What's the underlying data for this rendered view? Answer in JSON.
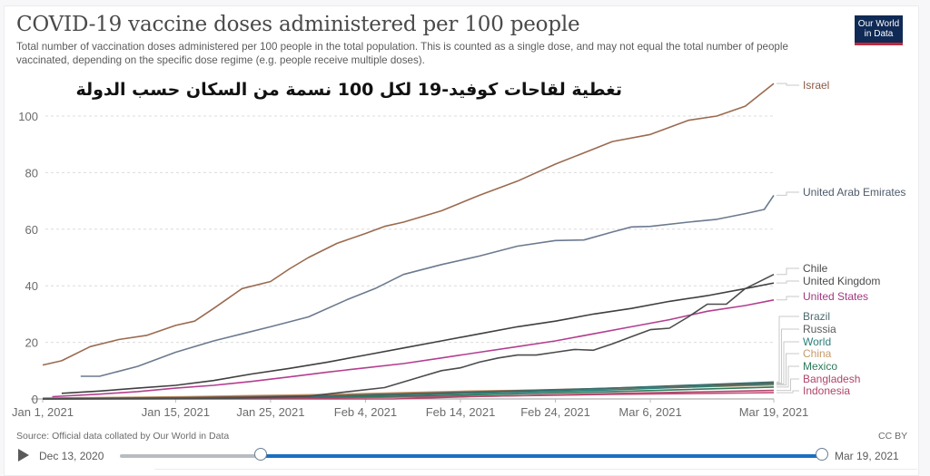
{
  "header": {
    "title": "COVID-19 vaccine doses administered per 100 people",
    "subtitle": "Total number of vaccination doses administered per 100 people in the total population. This is counted as a single dose, and may not equal the total number of people vaccinated, depending on the specific dose regime (e.g. people receive multiple doses).",
    "logo_line1": "Our World",
    "logo_line2": "in Data",
    "logo_colors": {
      "background": "#0f2a55",
      "accent": "#c0283b"
    },
    "overlay_arabic_caption": "تغطية لقاحات كوفيد-19 لكل 100 نسمة من السكان حسب الدولة"
  },
  "footer": {
    "source": "Source: Official data collated by Our World in Data",
    "license": "CC BY",
    "timeline": {
      "play_icon": "play-icon",
      "start_label": "Dec 13, 2020",
      "end_label": "Mar 19, 2021",
      "range_start_fraction": 0.2,
      "range_end_fraction": 1.0,
      "fill_color": "#1a6fc2",
      "track_color": "#b8bcc2"
    }
  },
  "chart_data": {
    "type": "line",
    "title": "COVID-19 vaccine doses administered per 100 people",
    "xlabel": "",
    "ylabel": "",
    "x_unit": "days since Jan 1, 2021",
    "x_range": [
      0,
      77
    ],
    "ylim": [
      0,
      100
    ],
    "yticks": [
      0,
      20,
      40,
      60,
      80,
      100
    ],
    "grid": "horizontal dashed",
    "xticks": [
      {
        "day": 0,
        "label": "Jan 1, 2021"
      },
      {
        "day": 14,
        "label": "Jan 15, 2021"
      },
      {
        "day": 24,
        "label": "Jan 25, 2021"
      },
      {
        "day": 34,
        "label": "Feb 4, 2021"
      },
      {
        "day": 44,
        "label": "Feb 14, 2021"
      },
      {
        "day": 54,
        "label": "Feb 24, 2021"
      },
      {
        "day": 64,
        "label": "Mar 6, 2021"
      },
      {
        "day": 77,
        "label": "Mar 19, 2021"
      }
    ],
    "legend_placement": "right (end-of-line labels)",
    "series": [
      {
        "name": "Israel",
        "color": "#9a6a4f",
        "label_color": "#8a5a44",
        "x": [
          0,
          2,
          5,
          8,
          11,
          14,
          16,
          18,
          21,
          24,
          26,
          28,
          31,
          34,
          36,
          38,
          42,
          46,
          50,
          54,
          57,
          60,
          64,
          68,
          71,
          74,
          77
        ],
        "y": [
          12,
          13.5,
          18.5,
          21,
          22.5,
          26,
          27.5,
          32,
          39,
          41.5,
          46,
          50,
          55,
          58.5,
          61,
          62.5,
          66.5,
          72,
          77,
          83,
          87,
          91,
          93.5,
          98.5,
          100,
          103.5,
          111.5
        ]
      },
      {
        "name": "United Arab Emirates",
        "color": "#6b7a8f",
        "label_color": "#4e5b6b",
        "x": [
          4,
          6,
          10,
          14,
          18,
          21,
          24,
          28,
          32,
          35,
          38,
          42,
          46,
          50,
          54,
          57,
          60,
          62,
          64,
          68,
          71,
          74,
          76,
          77
        ],
        "y": [
          8,
          8,
          11.5,
          16.5,
          20.5,
          23,
          25.5,
          29,
          35,
          39,
          44,
          47.5,
          50.5,
          54,
          56,
          56.2,
          59,
          60.8,
          61,
          62.5,
          63.5,
          65.5,
          67,
          72
        ]
      },
      {
        "name": "Chile",
        "color": "#4b4b4b",
        "label_color": "#4b4b4b",
        "x": [
          0,
          20,
          28,
          32,
          36,
          40,
          42,
          44,
          46,
          48,
          50,
          52,
          54,
          56,
          58,
          60,
          62,
          64,
          66,
          68,
          70,
          72,
          74,
          77
        ],
        "y": [
          0,
          0.3,
          1,
          2.5,
          4,
          8,
          10,
          11,
          13,
          14.5,
          15.5,
          15.5,
          16.5,
          17.5,
          17.2,
          19.5,
          22,
          24.5,
          25,
          29,
          33.5,
          33.5,
          39,
          44
        ]
      },
      {
        "name": "United Kingdom",
        "color": "#3f3f3f",
        "label_color": "#4b4b4b",
        "x": [
          2,
          6,
          10,
          14,
          18,
          22,
          26,
          30,
          34,
          38,
          42,
          46,
          50,
          54,
          58,
          62,
          66,
          70,
          74,
          77
        ],
        "y": [
          2,
          2.8,
          3.8,
          4.8,
          6.5,
          8.8,
          10.8,
          13,
          15.5,
          18,
          20.5,
          23,
          25.5,
          27.5,
          30,
          32,
          34.5,
          36.5,
          39,
          41
        ]
      },
      {
        "name": "United States",
        "color": "#b43e8f",
        "label_color": "#a2387f",
        "x": [
          1,
          6,
          10,
          14,
          18,
          22,
          26,
          30,
          34,
          38,
          42,
          46,
          50,
          54,
          58,
          62,
          66,
          70,
          74,
          77
        ],
        "y": [
          0.8,
          1.7,
          2.6,
          3.8,
          4.8,
          6.2,
          7.8,
          9.5,
          11,
          12.5,
          14.5,
          16.5,
          18.5,
          20.5,
          23,
          25.5,
          28,
          31,
          33,
          35
        ]
      },
      {
        "name": "Brazil",
        "color": "#3a6e6e",
        "label_color": "#4e6b70",
        "x": [
          0,
          17,
          30,
          45,
          60,
          77
        ],
        "y": [
          0,
          0.1,
          0.9,
          2.2,
          3.8,
          6.0
        ]
      },
      {
        "name": "Russia",
        "color": "#7a5a4a",
        "label_color": "#5b5b5b",
        "x": [
          0,
          15,
          30,
          45,
          60,
          77
        ],
        "y": [
          0.1,
          0.5,
          1.2,
          2.5,
          3.8,
          5.6
        ]
      },
      {
        "name": "World",
        "color": "#2a7f7a",
        "label_color": "#2a7f7a",
        "x": [
          0,
          15,
          30,
          45,
          60,
          77
        ],
        "y": [
          0.1,
          0.4,
          1.0,
          2.0,
          3.2,
          5.3
        ]
      },
      {
        "name": "China",
        "color": "#c59a6b",
        "label_color": "#c59a6b",
        "x": [
          0,
          15,
          30,
          45,
          60,
          77
        ],
        "y": [
          0.3,
          0.8,
          1.6,
          2.8,
          3.5,
          4.9
        ]
      },
      {
        "name": "Mexico",
        "color": "#2e7a5a",
        "label_color": "#2e7a5a",
        "x": [
          0,
          15,
          30,
          45,
          60,
          77
        ],
        "y": [
          0,
          0.3,
          0.6,
          1.4,
          2.6,
          4.2
        ]
      },
      {
        "name": "Bangladesh",
        "color": "#b0456a",
        "label_color": "#b0456a",
        "x": [
          0,
          37,
          45,
          60,
          77
        ],
        "y": [
          0,
          0,
          0.8,
          1.9,
          3.0
        ]
      },
      {
        "name": "Indonesia",
        "color": "#c44d78",
        "label_color": "#b0456a",
        "x": [
          0,
          13,
          30,
          45,
          60,
          77
        ],
        "y": [
          0,
          0.1,
          0.4,
          0.9,
          1.6,
          2.2
        ]
      }
    ]
  }
}
